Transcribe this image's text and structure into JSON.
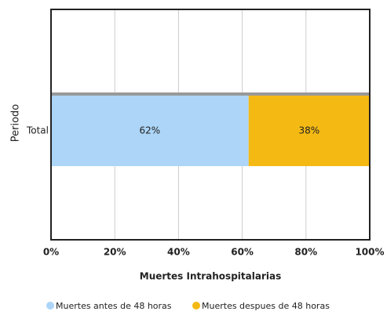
{
  "chart_data": {
    "type": "bar",
    "orientation": "horizontal",
    "stacked": true,
    "categories": [
      "Total"
    ],
    "series": [
      {
        "name": "Muertes antes de 48 horas",
        "color": "#acd5f7",
        "values": [
          62
        ],
        "value_labels": [
          "62%"
        ]
      },
      {
        "name": "Muertes despues de 48 horas",
        "color": "#f5b914",
        "values": [
          38
        ],
        "value_labels": [
          "38%"
        ]
      }
    ],
    "xlim": [
      0,
      100
    ],
    "xticks": [
      {
        "value": 0,
        "label": "0%"
      },
      {
        "value": 20,
        "label": "20%"
      },
      {
        "value": 40,
        "label": "40%"
      },
      {
        "value": 60,
        "label": "60%"
      },
      {
        "value": 80,
        "label": "80%"
      },
      {
        "value": 100,
        "label": "100%"
      }
    ],
    "x_label": "Muertes Intrahospitalarias",
    "y_label": "Periodo",
    "grid": true,
    "legend": "bottom"
  }
}
